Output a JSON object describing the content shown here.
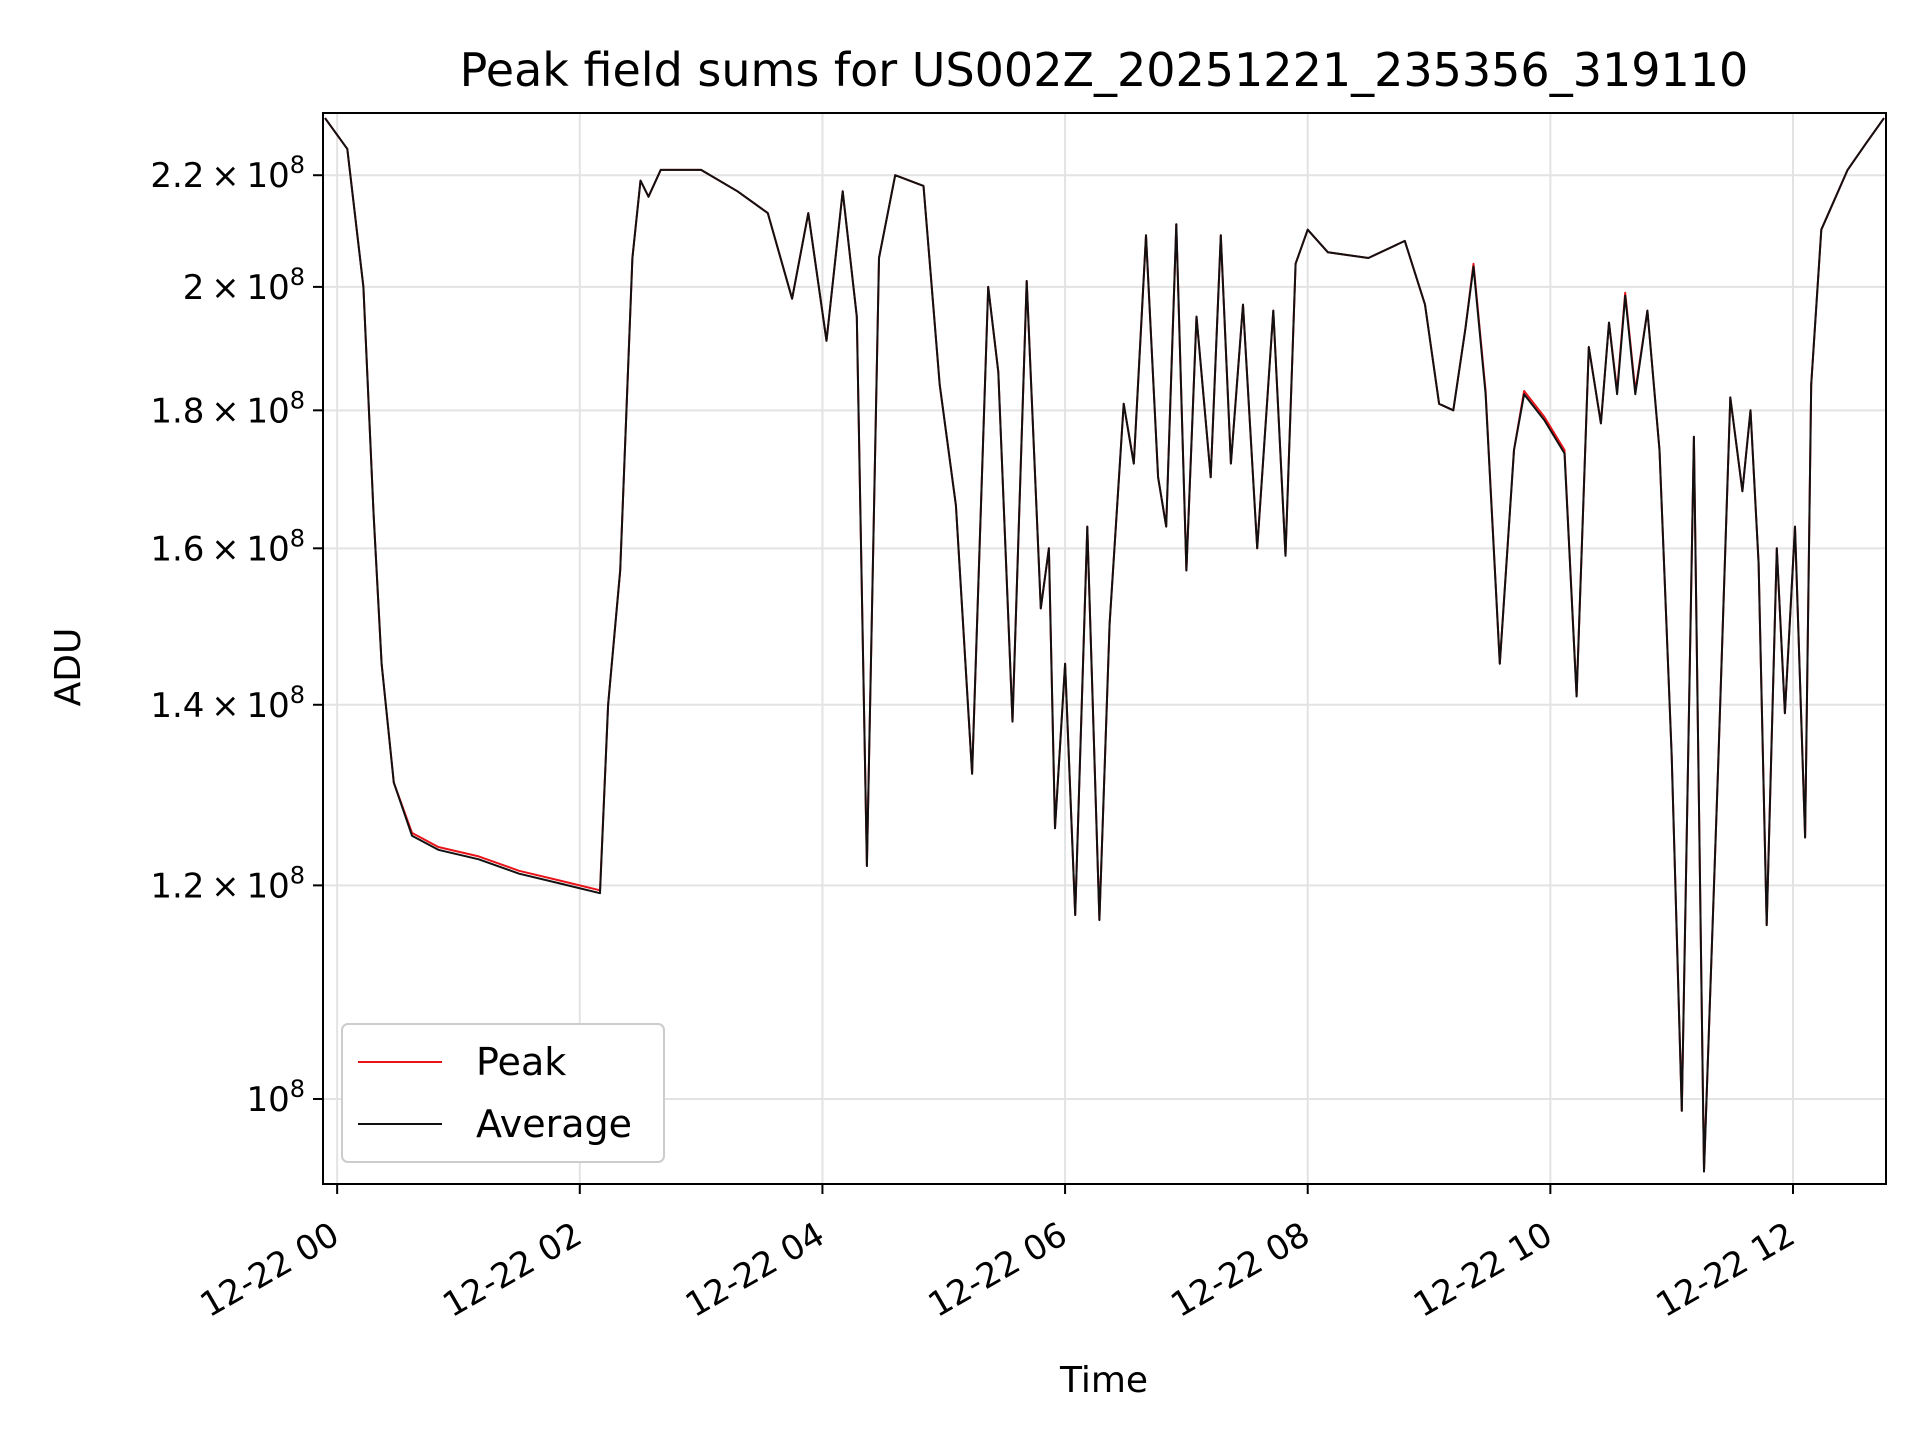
{
  "chart_data": {
    "type": "line",
    "title": "Peak field sums for US002Z_20251221_235356_319110",
    "xlabel": "Time",
    "ylabel": "ADU",
    "yscale": "log",
    "xlim": [
      "2025-12-21T23:53",
      "2025-12-22T12:46"
    ],
    "ylim": [
      93000000,
      232000000
    ],
    "grid": true,
    "legend_position": "lower-left",
    "x_ticks": [
      "12-22 00",
      "12-22 02",
      "12-22 04",
      "12-22 06",
      "12-22 08",
      "12-22 10",
      "12-22 12"
    ],
    "x_tick_times": [
      "2025-12-22T00:00",
      "2025-12-22T02:00",
      "2025-12-22T04:00",
      "2025-12-22T06:00",
      "2025-12-22T08:00",
      "2025-12-22T10:00",
      "2025-12-22T12:00"
    ],
    "y_ticks": [
      {
        "value": 100000000,
        "mantissa": "",
        "exponent": "8"
      },
      {
        "value": 120000000,
        "mantissa": "1.2",
        "exponent": "8"
      },
      {
        "value": 140000000,
        "mantissa": "1.4",
        "exponent": "8"
      },
      {
        "value": 160000000,
        "mantissa": "1.6",
        "exponent": "8"
      },
      {
        "value": 180000000,
        "mantissa": "1.8",
        "exponent": "8"
      },
      {
        "value": 200000000,
        "mantissa": "2",
        "exponent": "8"
      },
      {
        "value": 220000000,
        "mantissa": "2.2",
        "exponent": "8"
      }
    ],
    "x": [
      "2025-12-21T23:54",
      "2025-12-22T00:05",
      "2025-12-22T00:13",
      "2025-12-22T00:18",
      "2025-12-22T00:22",
      "2025-12-22T00:28",
      "2025-12-22T00:37",
      "2025-12-22T00:50",
      "2025-12-22T01:10",
      "2025-12-22T01:30",
      "2025-12-22T01:50",
      "2025-12-22T02:10",
      "2025-12-22T02:14",
      "2025-12-22T02:20",
      "2025-12-22T02:26",
      "2025-12-22T02:30",
      "2025-12-22T02:34",
      "2025-12-22T02:40",
      "2025-12-22T03:00",
      "2025-12-22T03:18",
      "2025-12-22T03:33",
      "2025-12-22T03:45",
      "2025-12-22T03:53",
      "2025-12-22T04:02",
      "2025-12-22T04:10",
      "2025-12-22T04:17",
      "2025-12-22T04:22",
      "2025-12-22T04:28",
      "2025-12-22T04:36",
      "2025-12-22T04:50",
      "2025-12-22T04:58",
      "2025-12-22T05:06",
      "2025-12-22T05:14",
      "2025-12-22T05:22",
      "2025-12-22T05:27",
      "2025-12-22T05:34",
      "2025-12-22T05:41",
      "2025-12-22T05:48",
      "2025-12-22T05:52",
      "2025-12-22T05:55",
      "2025-12-22T06:00",
      "2025-12-22T06:05",
      "2025-12-22T06:11",
      "2025-12-22T06:17",
      "2025-12-22T06:22",
      "2025-12-22T06:29",
      "2025-12-22T06:34",
      "2025-12-22T06:40",
      "2025-12-22T06:46",
      "2025-12-22T06:50",
      "2025-12-22T06:55",
      "2025-12-22T07:00",
      "2025-12-22T07:05",
      "2025-12-22T07:12",
      "2025-12-22T07:17",
      "2025-12-22T07:22",
      "2025-12-22T07:28",
      "2025-12-22T07:35",
      "2025-12-22T07:43",
      "2025-12-22T07:49",
      "2025-12-22T07:54",
      "2025-12-22T08:00",
      "2025-12-22T08:10",
      "2025-12-22T08:30",
      "2025-12-22T08:48",
      "2025-12-22T08:58",
      "2025-12-22T09:05",
      "2025-12-22T09:12",
      "2025-12-22T09:18",
      "2025-12-22T09:22",
      "2025-12-22T09:28",
      "2025-12-22T09:35",
      "2025-12-22T09:42",
      "2025-12-22T09:47",
      "2025-12-22T09:57",
      "2025-12-22T10:07",
      "2025-12-22T10:13",
      "2025-12-22T10:19",
      "2025-12-22T10:25",
      "2025-12-22T10:29",
      "2025-12-22T10:33",
      "2025-12-22T10:37",
      "2025-12-22T10:42",
      "2025-12-22T10:48",
      "2025-12-22T10:54",
      "2025-12-22T11:00",
      "2025-12-22T11:05",
      "2025-12-22T11:11",
      "2025-12-22T11:16",
      "2025-12-22T11:23",
      "2025-12-22T11:29",
      "2025-12-22T11:35",
      "2025-12-22T11:39",
      "2025-12-22T11:43",
      "2025-12-22T11:47",
      "2025-12-22T11:52",
      "2025-12-22T11:56",
      "2025-12-22T12:01",
      "2025-12-22T12:06",
      "2025-12-22T12:09",
      "2025-12-22T12:14",
      "2025-12-22T12:20",
      "2025-12-22T12:27",
      "2025-12-22T12:36",
      "2025-12-22T12:45"
    ],
    "series": [
      {
        "name": "Peak",
        "color": "#e8141a",
        "values": [
          231000000,
          225000000,
          200000000,
          165000000,
          145000000,
          131000000,
          125500000,
          124000000,
          123000000,
          121500000,
          120500000,
          119500000,
          140000000,
          157000000,
          205000000,
          219000000,
          216000000,
          221000000,
          221000000,
          217000000,
          213000000,
          198000000,
          213000000,
          191000000,
          217000000,
          195000000,
          122000000,
          205000000,
          220000000,
          218000000,
          184000000,
          166000000,
          132000000,
          200000000,
          186000000,
          138000000,
          201000000,
          152000000,
          160000000,
          126000000,
          145000000,
          117000000,
          163000000,
          116500000,
          150000000,
          181000000,
          172000000,
          209000000,
          170000000,
          163000000,
          211000000,
          157000000,
          195000000,
          170000000,
          209000000,
          172000000,
          197000000,
          160000000,
          196000000,
          159000000,
          204000000,
          210000000,
          206000000,
          205000000,
          208000000,
          197000000,
          181000000,
          180000000,
          193000000,
          204000000,
          183000000,
          145000000,
          174000000,
          183000000,
          179000000,
          174000000,
          141000000,
          190000000,
          178000000,
          194000000,
          183000000,
          199000000,
          183000000,
          196000000,
          174000000,
          134000000,
          99000000,
          176000000,
          94000000,
          133000000,
          182000000,
          168000000,
          180000000,
          158000000,
          116000000,
          160000000,
          139000000,
          163000000,
          125000000,
          184000000,
          210000000,
          215000000,
          221000000,
          226000000,
          231000000
        ]
      },
      {
        "name": "Average",
        "color": "#111111",
        "values": [
          231000000,
          225000000,
          200000000,
          165000000,
          145000000,
          131000000,
          125200000,
          123700000,
          122700000,
          121200000,
          120200000,
          119200000,
          140000000,
          157000000,
          205000000,
          219000000,
          216000000,
          221000000,
          221000000,
          217000000,
          213000000,
          198000000,
          213000000,
          191000000,
          217000000,
          195000000,
          122000000,
          205000000,
          220000000,
          218000000,
          184000000,
          166000000,
          132000000,
          200000000,
          186000000,
          138000000,
          201000000,
          152000000,
          160000000,
          126000000,
          145000000,
          117000000,
          163000000,
          116500000,
          150000000,
          181000000,
          172000000,
          209000000,
          170000000,
          163000000,
          211000000,
          157000000,
          195000000,
          170000000,
          209000000,
          172000000,
          197000000,
          160000000,
          196000000,
          159000000,
          204000000,
          210000000,
          206000000,
          205000000,
          208000000,
          197000000,
          181000000,
          180000000,
          193000000,
          203500000,
          182500000,
          145000000,
          174000000,
          182500000,
          178500000,
          173500000,
          141000000,
          190000000,
          178000000,
          194000000,
          182500000,
          198500000,
          182500000,
          196000000,
          174000000,
          134000000,
          99000000,
          176000000,
          94000000,
          133000000,
          182000000,
          168000000,
          180000000,
          158000000,
          116000000,
          160000000,
          139000000,
          163000000,
          125000000,
          184000000,
          210000000,
          215000000,
          221000000,
          226000000,
          231000000
        ]
      }
    ]
  }
}
